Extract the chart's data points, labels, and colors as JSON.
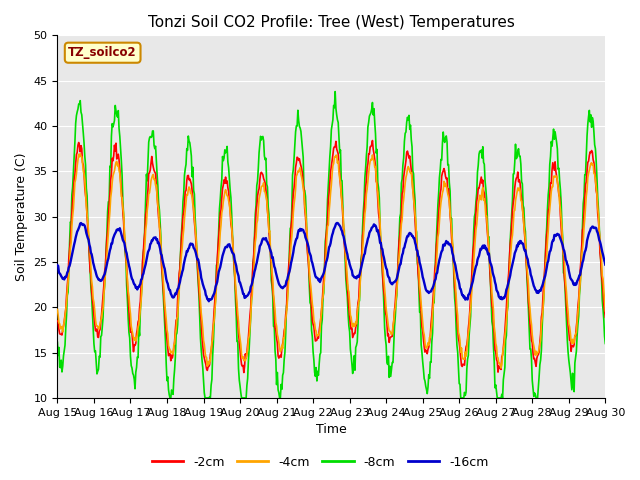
{
  "title": "Tonzi Soil CO2 Profile: Tree (West) Temperatures",
  "xlabel": "Time",
  "ylabel": "Soil Temperature (C)",
  "ylim": [
    10,
    50
  ],
  "num_days": 15,
  "x_tick_labels": [
    "Aug 15",
    "Aug 16",
    "Aug 17",
    "Aug 18",
    "Aug 19",
    "Aug 20",
    "Aug 21",
    "Aug 22",
    "Aug 23",
    "Aug 24",
    "Aug 25",
    "Aug 26",
    "Aug 27",
    "Aug 28",
    "Aug 29",
    "Aug 30"
  ],
  "colors": {
    "-2cm": "#ff0000",
    "-4cm": "#ffa500",
    "-8cm": "#00dd00",
    "-16cm": "#0000cc"
  },
  "legend_label": "TZ_soilco2",
  "background_color": "#e8e8e8",
  "figure_facecolor": "#ffffff",
  "title_fontsize": 11,
  "axis_label_fontsize": 9,
  "tick_fontsize": 8,
  "line_width": 1.2
}
